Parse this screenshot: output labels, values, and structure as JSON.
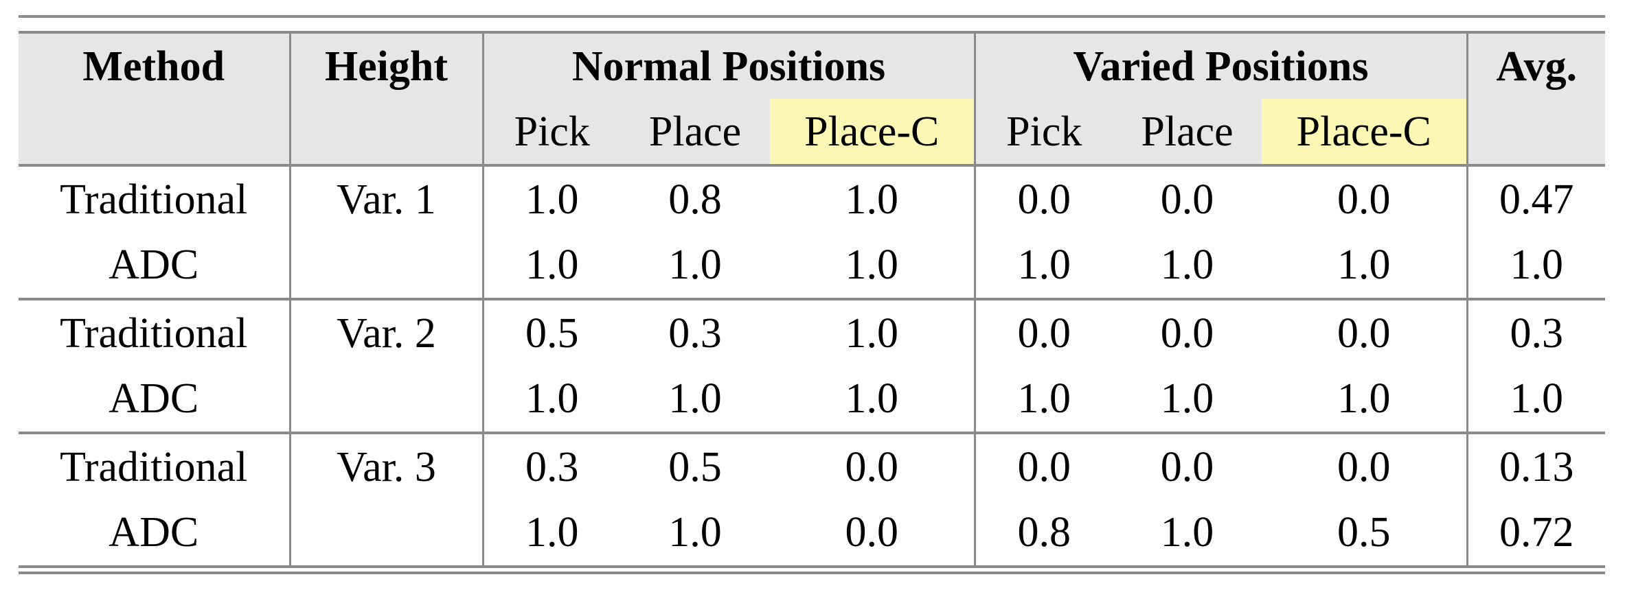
{
  "headers": {
    "method": "Method",
    "height": "Height",
    "normal": "Normal Positions",
    "varied": "Varied Positions",
    "avg": "Avg.",
    "sub": [
      "Pick",
      "Place",
      "Place-C",
      "Pick",
      "Place",
      "Place-C"
    ]
  },
  "highlight_color": "#fdf7b6",
  "groups": [
    {
      "height": "Var. 1",
      "rows": [
        {
          "method": "Traditional",
          "values": [
            "1.0",
            "0.8",
            "1.0",
            "0.0",
            "0.0",
            "0.0"
          ],
          "avg": "0.47"
        },
        {
          "method": "ADC",
          "values": [
            "1.0",
            "1.0",
            "1.0",
            "1.0",
            "1.0",
            "1.0"
          ],
          "avg": "1.0"
        }
      ]
    },
    {
      "height": "Var. 2",
      "rows": [
        {
          "method": "Traditional",
          "values": [
            "0.5",
            "0.3",
            "1.0",
            "0.0",
            "0.0",
            "0.0"
          ],
          "avg": "0.3"
        },
        {
          "method": "ADC",
          "values": [
            "1.0",
            "1.0",
            "1.0",
            "1.0",
            "1.0",
            "1.0"
          ],
          "avg": "1.0"
        }
      ]
    },
    {
      "height": "Var. 3",
      "rows": [
        {
          "method": "Traditional",
          "values": [
            "0.3",
            "0.5",
            "0.0",
            "0.0",
            "0.0",
            "0.0"
          ],
          "avg": "0.13"
        },
        {
          "method": "ADC",
          "values": [
            "1.0",
            "1.0",
            "0.0",
            "0.8",
            "1.0",
            "0.5"
          ],
          "avg": "0.72"
        }
      ]
    }
  ]
}
